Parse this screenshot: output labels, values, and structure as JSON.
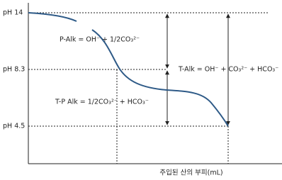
{
  "y_labels": [
    "pH 14",
    "pH 8.3",
    "pH 4.5"
  ],
  "annotations": {
    "p_alk": "P-Alk = OH⁻ + 1/2CO₃²⁻",
    "t_alk": "T-Alk = OH⁻ + CO₃²⁻ + HCO₃⁻",
    "tp_alk": "T-P Alk = 1/2CO₃²⁻ + HCO₃⁻"
  },
  "x_axis_label": "주입된 산의 부피(mL)"
}
